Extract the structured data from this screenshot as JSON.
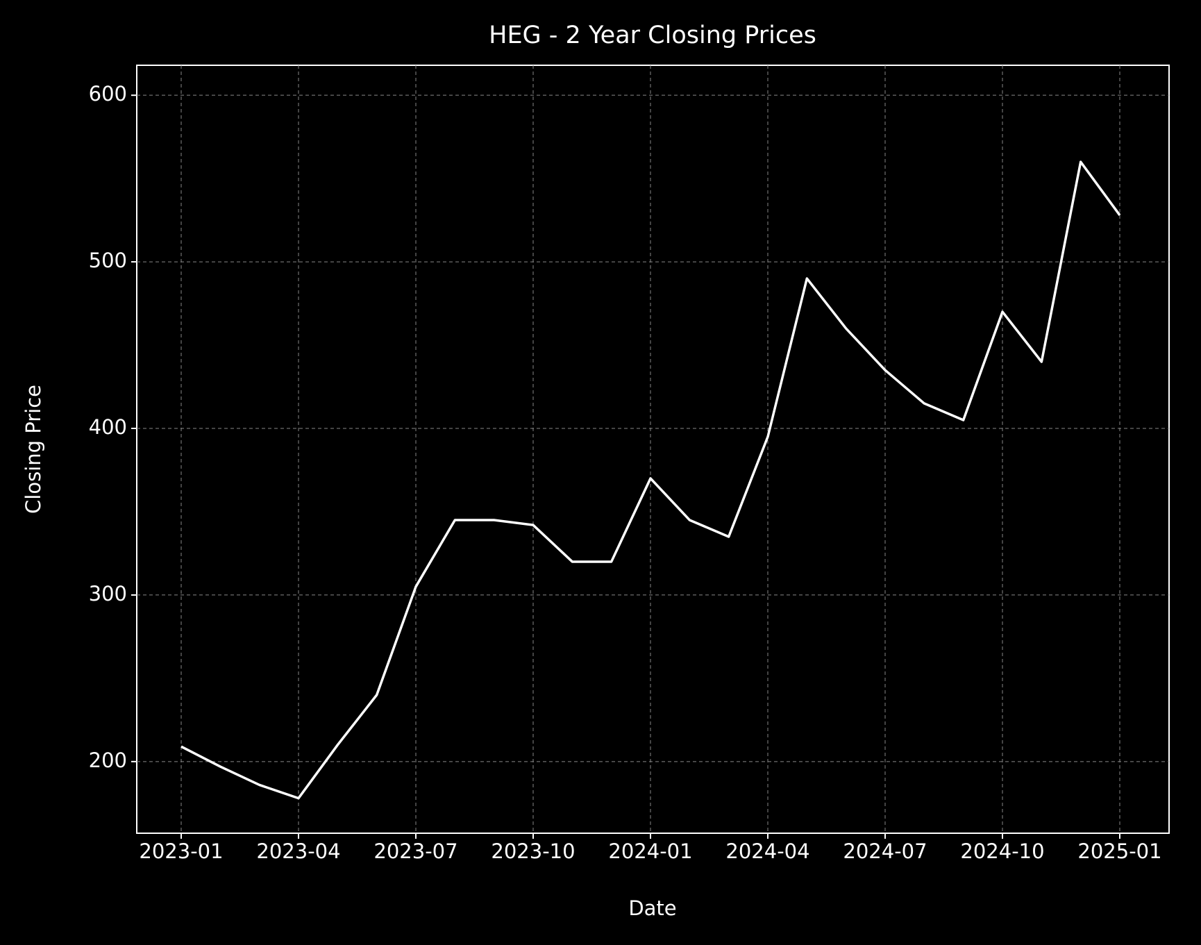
{
  "chart_data": {
    "type": "line",
    "title": "HEG - 2 Year Closing Prices",
    "x_label": "Date",
    "y_label": "Closing Price",
    "x": [
      "2023-01",
      "2023-02",
      "2023-03",
      "2023-04",
      "2023-05",
      "2023-06",
      "2023-07",
      "2023-08",
      "2023-09",
      "2023-10",
      "2023-11",
      "2023-12",
      "2024-01",
      "2024-02",
      "2024-03",
      "2024-04",
      "2024-05",
      "2024-06",
      "2024-07",
      "2024-08",
      "2024-09",
      "2024-10",
      "2024-11",
      "2024-12",
      "2025-01"
    ],
    "series": [
      {
        "name": "Closing Price",
        "color": "#ffffff",
        "values": [
          209,
          197,
          186,
          178,
          210,
          240,
          305,
          345,
          345,
          342,
          320,
          320,
          370,
          345,
          335,
          395,
          490,
          460,
          435,
          415,
          405,
          470,
          440,
          560,
          528
        ]
      }
    ],
    "xlim": [
      "2023-01",
      "2025-01"
    ],
    "xticks": [
      "2023-01",
      "2023-04",
      "2023-07",
      "2023-10",
      "2024-01",
      "2024-04",
      "2024-07",
      "2024-10",
      "2025-01"
    ],
    "ylim": [
      157,
      618
    ],
    "yticks": [
      200,
      300,
      400,
      500,
      600
    ],
    "grid": true
  }
}
